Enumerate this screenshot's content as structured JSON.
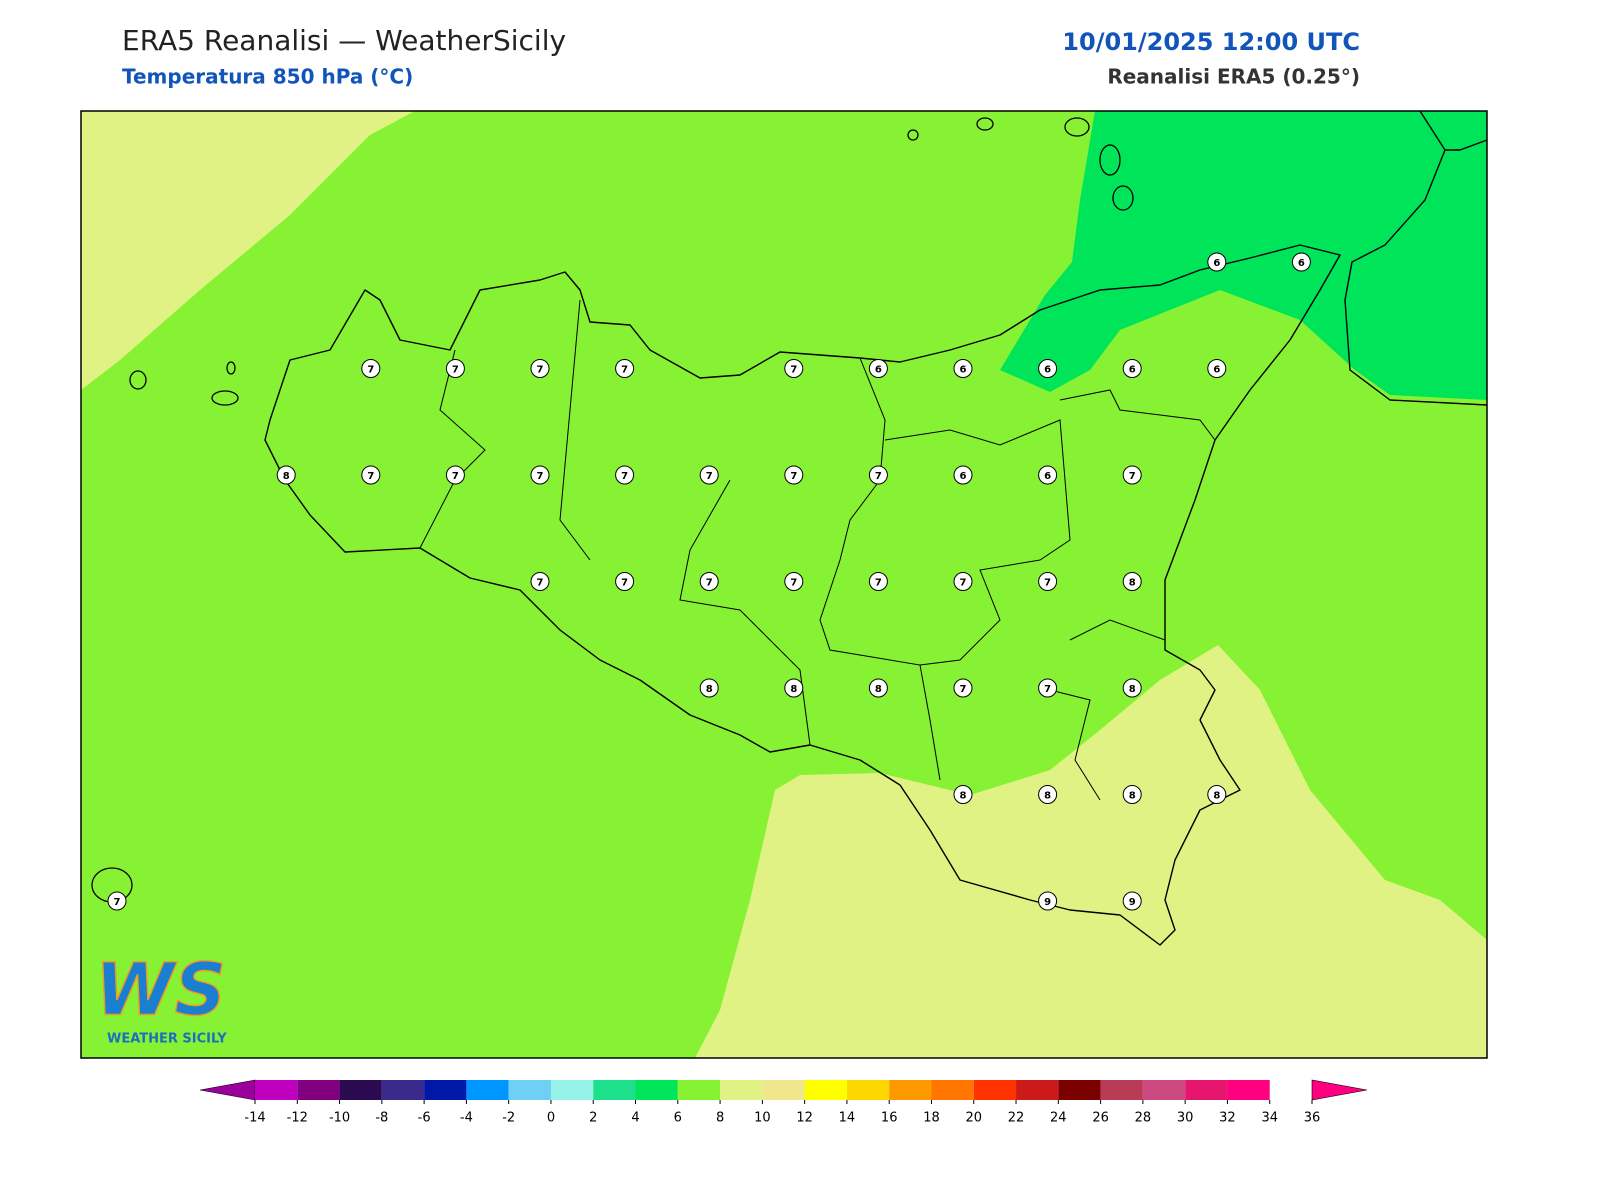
{
  "header": {
    "title": "ERA5 Reanalisi — WeatherSicily",
    "subtitle": "Temperatura 850 hPa (°C)",
    "datetime": "10/01/2025 12:00 UTC",
    "source": "Reanalisi ERA5 (0.25°)"
  },
  "logo": {
    "mark": "WS",
    "name": "WEATHER SICILY"
  },
  "stations": {
    "grid": [
      [
        null,
        null,
        null,
        null,
        null,
        null,
        null,
        null,
        null,
        null,
        null,
        null,
        null,
        6,
        6
      ],
      [
        null,
        null,
        null,
        7,
        7,
        7,
        7,
        null,
        7,
        6,
        6,
        6,
        6,
        6,
        null
      ],
      [
        null,
        null,
        8,
        7,
        7,
        7,
        7,
        7,
        7,
        7,
        6,
        6,
        7,
        null,
        null
      ],
      [
        null,
        null,
        null,
        null,
        null,
        7,
        7,
        7,
        7,
        7,
        7,
        7,
        8,
        null,
        null
      ],
      [
        null,
        null,
        null,
        null,
        null,
        null,
        null,
        8,
        8,
        8,
        7,
        7,
        8,
        null,
        null
      ],
      [
        null,
        null,
        null,
        null,
        null,
        null,
        null,
        null,
        null,
        null,
        8,
        8,
        8,
        8,
        null
      ],
      [
        7,
        null,
        null,
        null,
        null,
        null,
        null,
        null,
        null,
        null,
        null,
        9,
        9,
        null,
        null
      ]
    ]
  },
  "colorbar": {
    "ticks": [
      -14,
      -12,
      -10,
      -8,
      -6,
      -4,
      -2,
      0,
      2,
      4,
      6,
      8,
      10,
      12,
      14,
      16,
      18,
      20,
      22,
      24,
      26,
      28,
      30,
      32,
      34,
      36
    ],
    "colors": [
      "#bf00bf",
      "#800080",
      "#2c0a52",
      "#3a2a8c",
      "#0018a8",
      "#0096ff",
      "#6fcff5",
      "#96f2e6",
      "#1ee08c",
      "#00e45a",
      "#86f233",
      "#e0f283",
      "#f0e68c",
      "#ffff00",
      "#ffd700",
      "#ff9900",
      "#ff7700",
      "#ff3300",
      "#cc1a1a",
      "#7a0000",
      "#b83c55",
      "#cc4a80",
      "#e6156e",
      "#ff0080"
    ],
    "under_color": "#9a009a",
    "over_color": "#ff0080"
  }
}
